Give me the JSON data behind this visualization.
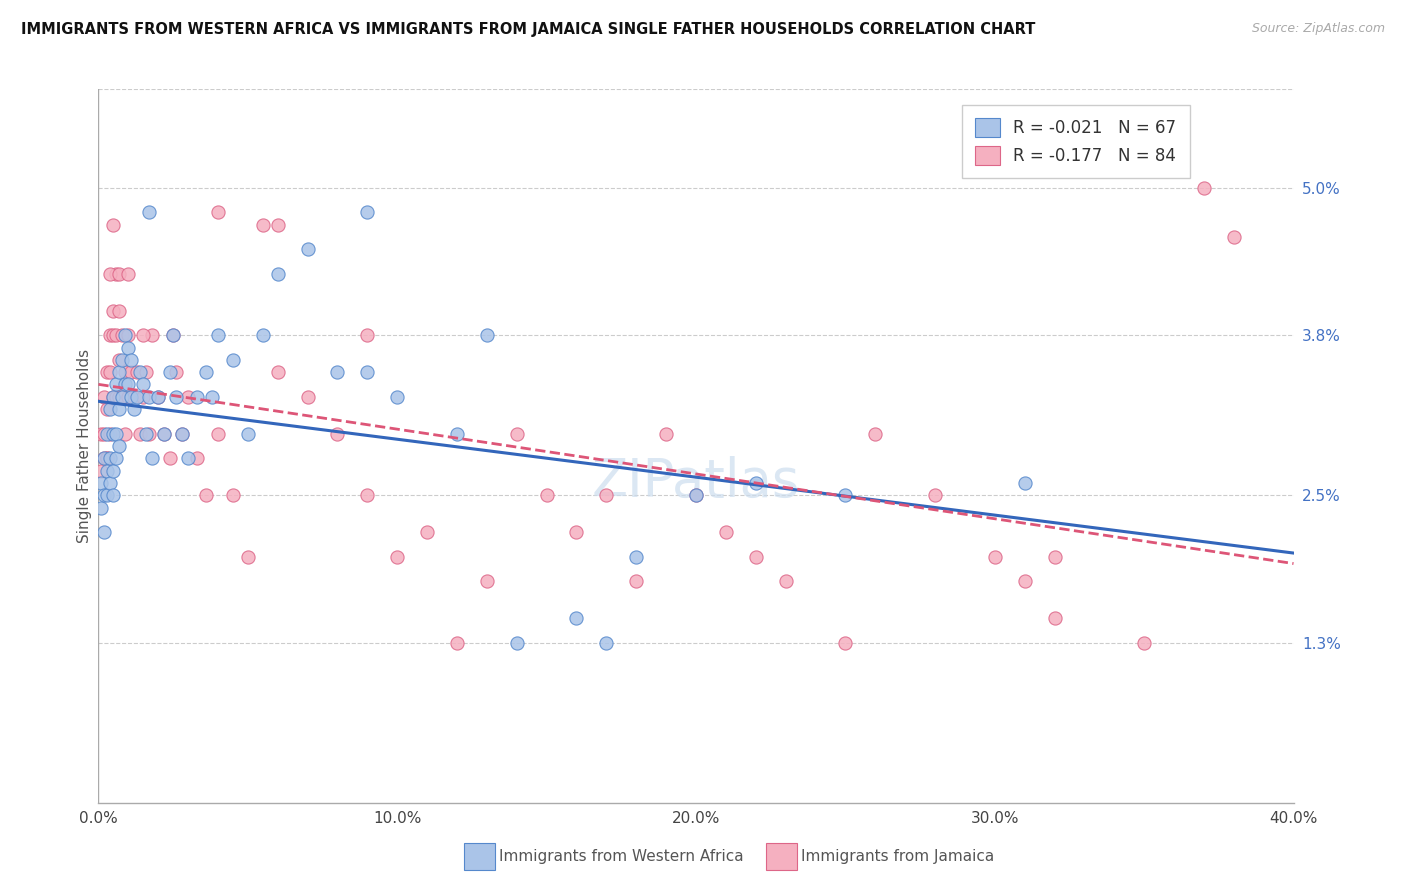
{
  "title": "IMMIGRANTS FROM WESTERN AFRICA VS IMMIGRANTS FROM JAMAICA SINGLE FATHER HOUSEHOLDS CORRELATION CHART",
  "source": "Source: ZipAtlas.com",
  "legend_blue": "Immigrants from Western Africa",
  "legend_pink": "Immigrants from Jamaica",
  "ylabel": "Single Father Households",
  "r_blue": -0.021,
  "n_blue": 67,
  "r_pink": -0.177,
  "n_pink": 84,
  "color_blue": "#aac4e8",
  "color_pink": "#f5b0c0",
  "edge_blue": "#5588cc",
  "edge_pink": "#dd6688",
  "trendline_blue": "#3366bb",
  "trendline_pink": "#dd5577",
  "xlim": [
    0.0,
    0.4
  ],
  "ylim": [
    0.0,
    0.058
  ],
  "yticks": [
    0.013,
    0.025,
    0.038,
    0.05
  ],
  "ytick_labels": [
    "1.3%",
    "2.5%",
    "3.8%",
    "5.0%"
  ],
  "xticks": [
    0.0,
    0.1,
    0.2,
    0.3,
    0.4
  ],
  "xtick_labels": [
    "0.0%",
    "10.0%",
    "20.0%",
    "30.0%",
    "40.0%"
  ],
  "blue_x": [
    0.001,
    0.001,
    0.002,
    0.002,
    0.002,
    0.003,
    0.003,
    0.003,
    0.004,
    0.004,
    0.004,
    0.005,
    0.005,
    0.005,
    0.005,
    0.006,
    0.006,
    0.006,
    0.007,
    0.007,
    0.007,
    0.008,
    0.008,
    0.009,
    0.009,
    0.01,
    0.01,
    0.011,
    0.011,
    0.012,
    0.013,
    0.014,
    0.015,
    0.016,
    0.017,
    0.018,
    0.02,
    0.022,
    0.024,
    0.026,
    0.028,
    0.03,
    0.033,
    0.036,
    0.04,
    0.045,
    0.05,
    0.055,
    0.06,
    0.07,
    0.08,
    0.09,
    0.1,
    0.12,
    0.14,
    0.16,
    0.18,
    0.2,
    0.22,
    0.25,
    0.09,
    0.13,
    0.17,
    0.017,
    0.025,
    0.038,
    0.31
  ],
  "blue_y": [
    0.026,
    0.024,
    0.028,
    0.025,
    0.022,
    0.03,
    0.027,
    0.025,
    0.032,
    0.028,
    0.026,
    0.033,
    0.03,
    0.027,
    0.025,
    0.034,
    0.03,
    0.028,
    0.035,
    0.032,
    0.029,
    0.036,
    0.033,
    0.038,
    0.034,
    0.037,
    0.034,
    0.036,
    0.033,
    0.032,
    0.033,
    0.035,
    0.034,
    0.03,
    0.033,
    0.028,
    0.033,
    0.03,
    0.035,
    0.033,
    0.03,
    0.028,
    0.033,
    0.035,
    0.038,
    0.036,
    0.03,
    0.038,
    0.043,
    0.045,
    0.035,
    0.035,
    0.033,
    0.03,
    0.013,
    0.015,
    0.02,
    0.025,
    0.026,
    0.025,
    0.048,
    0.038,
    0.013,
    0.048,
    0.038,
    0.033,
    0.026
  ],
  "pink_x": [
    0.001,
    0.001,
    0.002,
    0.002,
    0.002,
    0.003,
    0.003,
    0.003,
    0.004,
    0.004,
    0.004,
    0.005,
    0.005,
    0.005,
    0.006,
    0.006,
    0.006,
    0.007,
    0.007,
    0.007,
    0.008,
    0.008,
    0.009,
    0.009,
    0.01,
    0.01,
    0.011,
    0.012,
    0.013,
    0.014,
    0.015,
    0.016,
    0.017,
    0.018,
    0.02,
    0.022,
    0.024,
    0.026,
    0.028,
    0.03,
    0.033,
    0.036,
    0.04,
    0.045,
    0.05,
    0.055,
    0.06,
    0.07,
    0.08,
    0.09,
    0.1,
    0.11,
    0.12,
    0.13,
    0.14,
    0.15,
    0.16,
    0.17,
    0.18,
    0.19,
    0.2,
    0.21,
    0.22,
    0.23,
    0.25,
    0.26,
    0.28,
    0.3,
    0.31,
    0.32,
    0.35,
    0.37,
    0.38,
    0.003,
    0.004,
    0.005,
    0.007,
    0.01,
    0.015,
    0.025,
    0.04,
    0.06,
    0.09,
    0.32
  ],
  "pink_y": [
    0.03,
    0.027,
    0.033,
    0.03,
    0.028,
    0.035,
    0.032,
    0.028,
    0.038,
    0.035,
    0.03,
    0.038,
    0.04,
    0.033,
    0.043,
    0.038,
    0.033,
    0.04,
    0.036,
    0.033,
    0.038,
    0.033,
    0.035,
    0.03,
    0.038,
    0.033,
    0.035,
    0.033,
    0.035,
    0.03,
    0.033,
    0.035,
    0.03,
    0.038,
    0.033,
    0.03,
    0.028,
    0.035,
    0.03,
    0.033,
    0.028,
    0.025,
    0.03,
    0.025,
    0.02,
    0.047,
    0.035,
    0.033,
    0.03,
    0.025,
    0.02,
    0.022,
    0.013,
    0.018,
    0.03,
    0.025,
    0.022,
    0.025,
    0.018,
    0.03,
    0.025,
    0.022,
    0.02,
    0.018,
    0.013,
    0.03,
    0.025,
    0.02,
    0.018,
    0.015,
    0.013,
    0.05,
    0.046,
    0.028,
    0.043,
    0.047,
    0.043,
    0.043,
    0.038,
    0.038,
    0.048,
    0.047,
    0.038,
    0.02
  ]
}
